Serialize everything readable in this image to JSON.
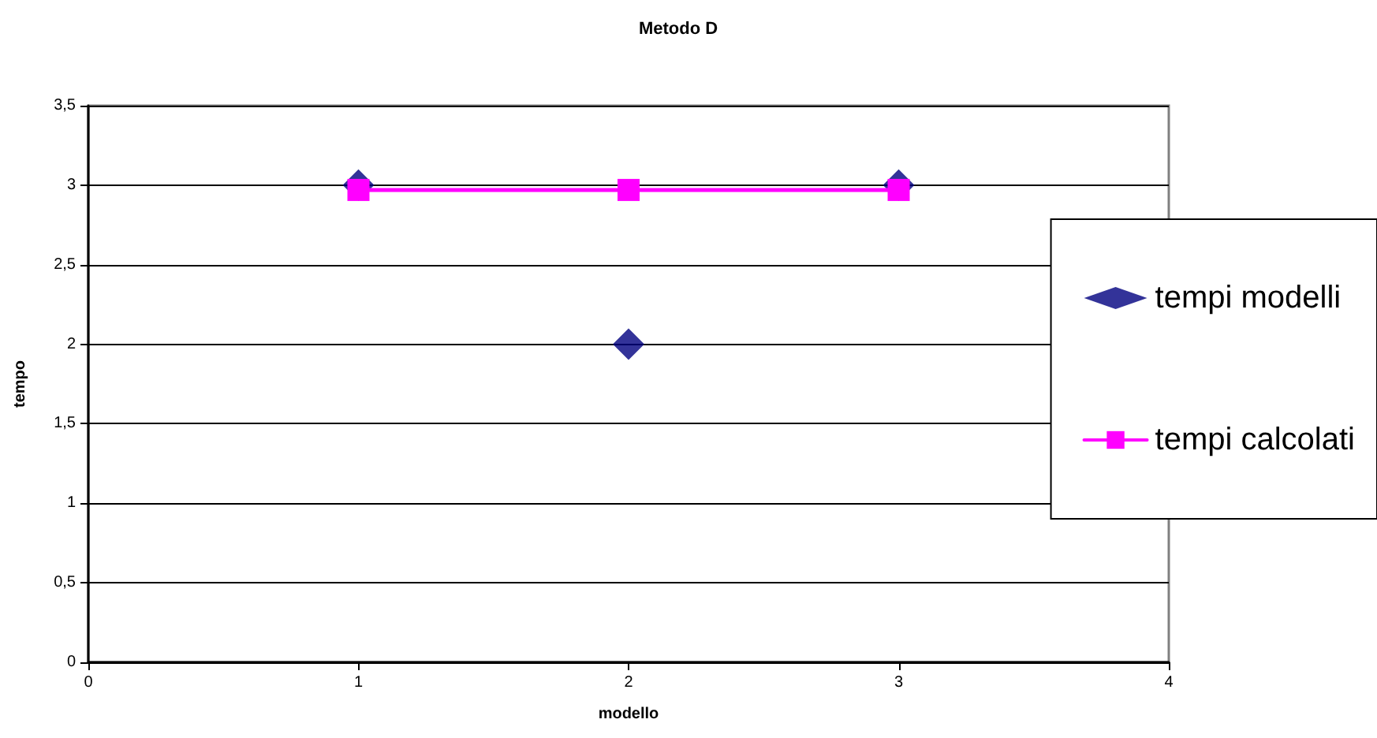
{
  "chart_data": {
    "type": "line",
    "title": "Metodo D",
    "xlabel": "modello",
    "ylabel": "tempo",
    "xlim": [
      0,
      4
    ],
    "xticks": [
      0,
      1,
      2,
      3,
      4
    ],
    "ylim": [
      0,
      3.5
    ],
    "yticks": [
      0,
      {
        "value": 0.5,
        "label": "0,5"
      },
      1,
      {
        "value": 1.5,
        "label": "1,5"
      },
      2,
      {
        "value": 2.5,
        "label": "2,5"
      },
      3,
      {
        "value": 3.5,
        "label": "3,5"
      }
    ],
    "grid": "y",
    "legend": "right",
    "series": [
      {
        "name": "tempi modelli",
        "type": "scatter",
        "marker": "diamond",
        "color": "#000080",
        "x": [
          1,
          2,
          3
        ],
        "values": [
          3,
          2,
          3
        ]
      },
      {
        "name": "tempi calcolati",
        "marker": "square",
        "line_style": "solid",
        "color": "#ff00ff",
        "x": [
          1,
          2,
          3
        ],
        "values": [
          2.97,
          2.97,
          2.97
        ]
      }
    ]
  }
}
